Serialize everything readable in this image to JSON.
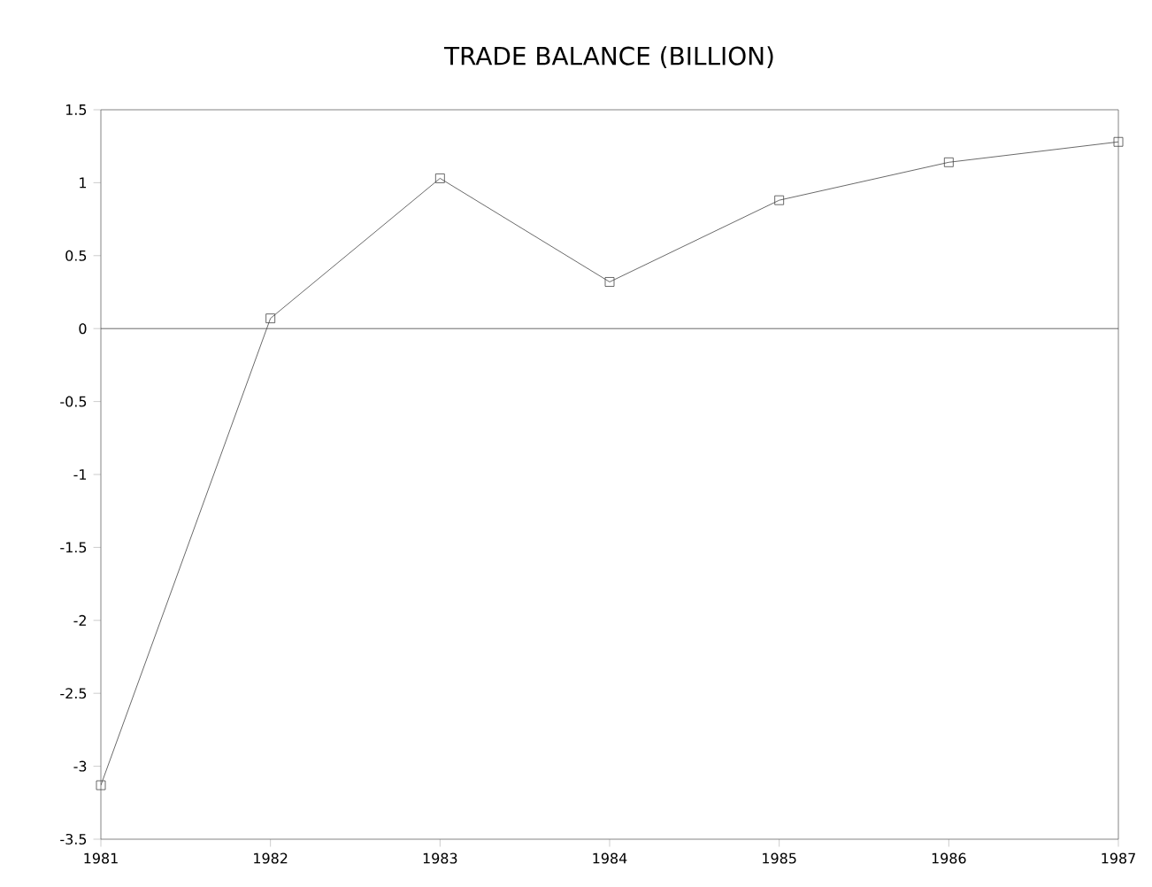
{
  "chart_data": {
    "type": "line",
    "title": "TRADE BALANCE (BILLION)",
    "x": [
      1981,
      1982,
      1983,
      1984,
      1985,
      1986,
      1987
    ],
    "series": [
      {
        "color": "#444444",
        "values": [
          -3.13,
          0.07,
          1.03,
          0.32,
          0.88,
          1.14,
          1.28
        ]
      }
    ],
    "xlim": [
      1981,
      1987
    ],
    "xticks": [
      1981,
      1982,
      1983,
      1984,
      1985,
      1986,
      1987
    ],
    "ylim": [
      -3.5,
      1.5
    ],
    "yticks": [
      -3.5,
      -3,
      -2.5,
      -2,
      -1.5,
      -1,
      -0.5,
      0,
      0.5,
      1,
      1.5
    ],
    "ref_lines": [
      {
        "axis": "y",
        "value": 0,
        "color": "#444444"
      }
    ],
    "marker": "square",
    "line_style": "solid",
    "grid": false
  }
}
